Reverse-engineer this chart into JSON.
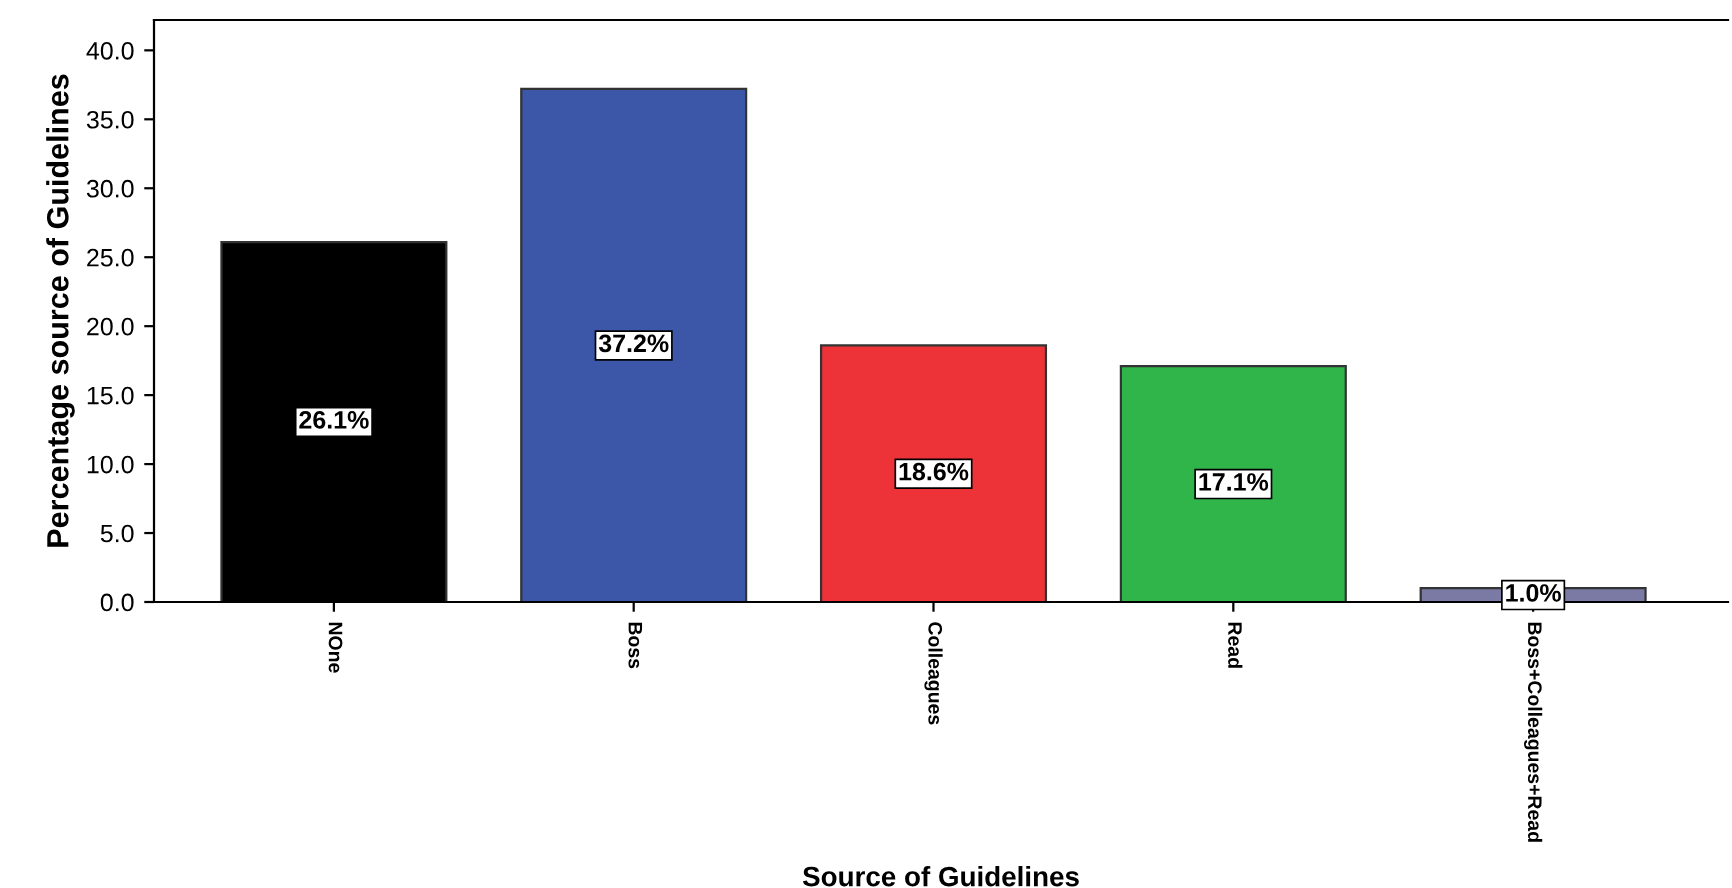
{
  "chart_data": {
    "type": "bar",
    "xlabel": "Source of Guidelines",
    "ylabel": "Percentage source of Guidelines",
    "categories": [
      "NOne",
      "Boss",
      "Colleagues",
      "Read",
      "Boss+Colleagues+Read"
    ],
    "values": [
      26.1,
      37.2,
      18.6,
      17.1,
      1.0
    ],
    "colors": [
      "#000000",
      "#3c56a8",
      "#ee3338",
      "#2fb54a",
      "#7a7aa5"
    ],
    "value_labels": [
      "26.1%",
      "37.2%",
      "18.6%",
      "17.1%",
      "1.0%"
    ],
    "ylim": [
      0,
      42.2
    ],
    "yticks": [
      {
        "value": 0,
        "label": "0.0"
      },
      {
        "value": 5,
        "label": "5.0"
      },
      {
        "value": 10,
        "label": "10.0"
      },
      {
        "value": 15,
        "label": "15.0"
      },
      {
        "value": 20,
        "label": "20.0"
      },
      {
        "value": 25,
        "label": "25.0"
      },
      {
        "value": 30,
        "label": "30.0"
      },
      {
        "value": 35,
        "label": "35.0"
      },
      {
        "value": 40,
        "label": "40.0"
      }
    ],
    "grid": false,
    "legend": false
  }
}
